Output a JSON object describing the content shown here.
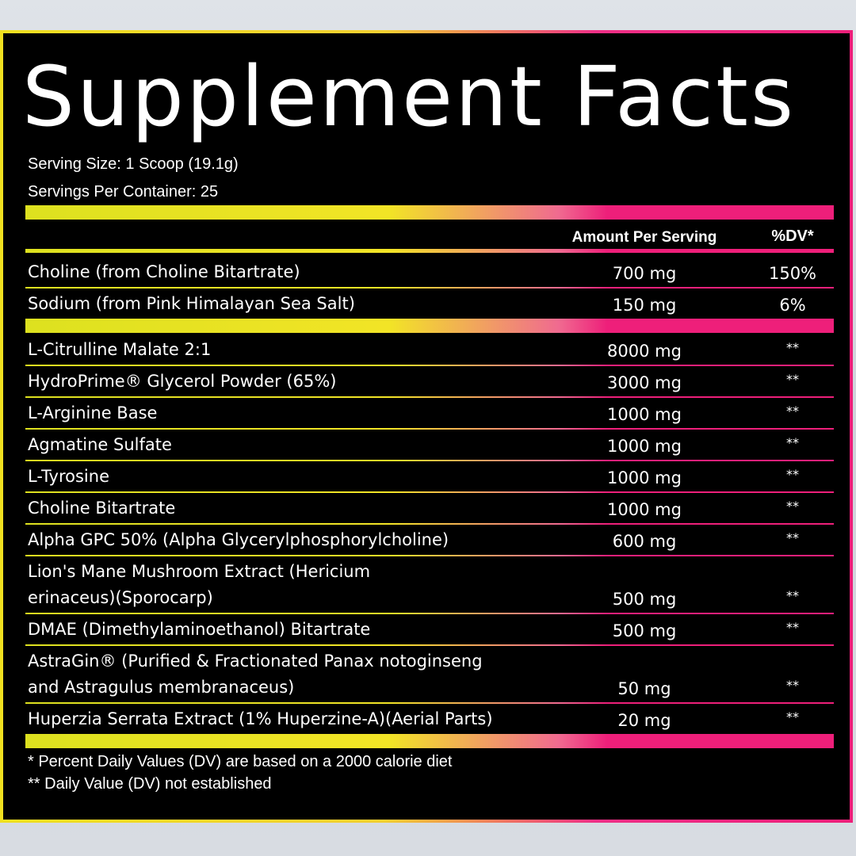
{
  "title": "Supplement Facts",
  "serving_size": "Serving Size: 1 Scoop (19.1g)",
  "servings_per_container": "Servings Per Container: 25",
  "header": {
    "amount": "Amount Per Serving",
    "dv": "%DV*"
  },
  "sections": [
    {
      "rows": [
        {
          "name": [
            "Choline (from Choline Bitartrate)"
          ],
          "amount": "700 mg",
          "dv": "150%"
        },
        {
          "name": [
            "Sodium (from Pink Himalayan Sea Salt)"
          ],
          "amount": "150 mg",
          "dv": "6%"
        }
      ]
    },
    {
      "rows": [
        {
          "name": [
            "L-Citrulline Malate 2:1"
          ],
          "amount": "8000 mg",
          "dv": "**"
        },
        {
          "name": [
            "HydroPrime® Glycerol Powder (65%)"
          ],
          "amount": "3000 mg",
          "dv": "**"
        },
        {
          "name": [
            "L-Arginine Base"
          ],
          "amount": "1000 mg",
          "dv": "**"
        },
        {
          "name": [
            "Agmatine Sulfate"
          ],
          "amount": "1000 mg",
          "dv": "**"
        },
        {
          "name": [
            "L-Tyrosine"
          ],
          "amount": "1000 mg",
          "dv": "**"
        },
        {
          "name": [
            "Choline Bitartrate"
          ],
          "amount": "1000 mg",
          "dv": "**"
        },
        {
          "name": [
            "Alpha GPC 50% (Alpha Glycerylphosphorylcholine)"
          ],
          "amount": "600 mg",
          "dv": "**"
        },
        {
          "name": [
            "Lion's Mane Mushroom Extract (Hericium",
            "erinaceus)(Sporocarp)"
          ],
          "amount": "500 mg",
          "dv": "**"
        },
        {
          "name": [
            "DMAE (Dimethylaminoethanol) Bitartrate"
          ],
          "amount": "500 mg",
          "dv": "**"
        },
        {
          "name": [
            "AstraGin® (Purified & Fractionated Panax notoginseng",
            "and Astragulus membranaceus)"
          ],
          "amount": "50 mg",
          "dv": "**"
        },
        {
          "name": [
            "Huperzia Serrata Extract (1% Huperzine-A)(Aerial Parts)"
          ],
          "amount": "20 mg",
          "dv": "**"
        }
      ]
    }
  ],
  "footnotes": [
    "* Percent Daily Values (DV) are based on a 2000 calorie diet",
    "** Daily Value (DV) not established"
  ]
}
